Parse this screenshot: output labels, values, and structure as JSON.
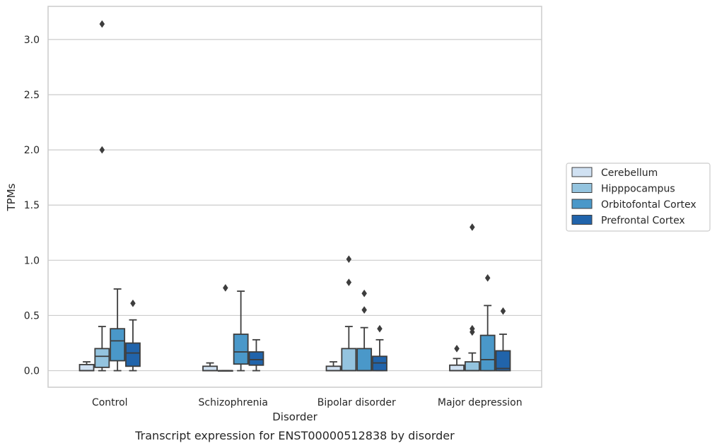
{
  "caption": "Transcript expression for ENST00000512838 by disorder",
  "chart_data": {
    "type": "box",
    "xlabel": "Disorder",
    "ylabel": "TPMs",
    "ylim": [
      -0.15,
      3.3
    ],
    "yticks": [
      "0.0",
      "0.5",
      "1.0",
      "1.5",
      "2.0",
      "2.5",
      "3.0"
    ],
    "ytick_values": [
      0.0,
      0.5,
      1.0,
      1.5,
      2.0,
      2.5,
      3.0
    ],
    "grid": "horizontal",
    "legend_position": "right",
    "categories": [
      "Control",
      "Schizophrenia",
      "Bipolar disorder",
      "Major depression"
    ],
    "series": [
      {
        "name": "Cerebellum",
        "color": "#d0e1f2",
        "boxes": [
          {
            "whislo": 0.0,
            "q1": 0.0,
            "med": 0.0,
            "q3": 0.055,
            "whishi": 0.08,
            "fliers": []
          },
          {
            "whislo": 0.0,
            "q1": 0.0,
            "med": 0.0,
            "q3": 0.04,
            "whishi": 0.07,
            "fliers": []
          },
          {
            "whislo": 0.0,
            "q1": 0.0,
            "med": 0.0,
            "q3": 0.04,
            "whishi": 0.08,
            "fliers": []
          },
          {
            "whislo": 0.0,
            "q1": 0.0,
            "med": 0.0,
            "q3": 0.05,
            "whishi": 0.11,
            "fliers": [
              0.2
            ]
          }
        ]
      },
      {
        "name": "Hipppocampus",
        "color": "#94c4df",
        "boxes": [
          {
            "whislo": 0.0,
            "q1": 0.03,
            "med": 0.13,
            "q3": 0.2,
            "whishi": 0.4,
            "fliers": [
              2.0,
              3.14
            ]
          },
          {
            "whislo": 0.0,
            "q1": 0.0,
            "med": 0.0,
            "q3": 0.0,
            "whishi": 0.0,
            "fliers": [
              0.75
            ]
          },
          {
            "whislo": 0.0,
            "q1": 0.0,
            "med": 0.0,
            "q3": 0.2,
            "whishi": 0.4,
            "fliers": [
              0.8,
              1.01
            ]
          },
          {
            "whislo": 0.0,
            "q1": 0.0,
            "med": 0.0,
            "q3": 0.08,
            "whishi": 0.16,
            "fliers": [
              0.35,
              0.38,
              1.3
            ]
          }
        ]
      },
      {
        "name": "Orbitofontal Cortex",
        "color": "#4a98c9",
        "boxes": [
          {
            "whislo": 0.0,
            "q1": 0.09,
            "med": 0.27,
            "q3": 0.38,
            "whishi": 0.74,
            "fliers": []
          },
          {
            "whislo": 0.0,
            "q1": 0.06,
            "med": 0.17,
            "q3": 0.33,
            "whishi": 0.72,
            "fliers": []
          },
          {
            "whislo": 0.0,
            "q1": 0.0,
            "med": 0.0,
            "q3": 0.2,
            "whishi": 0.39,
            "fliers": [
              0.55,
              0.7
            ]
          },
          {
            "whislo": 0.0,
            "q1": 0.0,
            "med": 0.1,
            "q3": 0.32,
            "whishi": 0.59,
            "fliers": [
              0.84
            ]
          }
        ]
      },
      {
        "name": "Prefrontal Cortex",
        "color": "#2164ab",
        "boxes": [
          {
            "whislo": 0.0,
            "q1": 0.04,
            "med": 0.16,
            "q3": 0.25,
            "whishi": 0.46,
            "fliers": [
              0.61
            ]
          },
          {
            "whislo": 0.0,
            "q1": 0.05,
            "med": 0.1,
            "q3": 0.17,
            "whishi": 0.28,
            "fliers": []
          },
          {
            "whislo": 0.0,
            "q1": 0.0,
            "med": 0.07,
            "q3": 0.13,
            "whishi": 0.28,
            "fliers": [
              0.38
            ]
          },
          {
            "whislo": 0.0,
            "q1": 0.0,
            "med": 0.02,
            "q3": 0.18,
            "whishi": 0.33,
            "fliers": [
              0.54
            ]
          }
        ]
      }
    ]
  }
}
